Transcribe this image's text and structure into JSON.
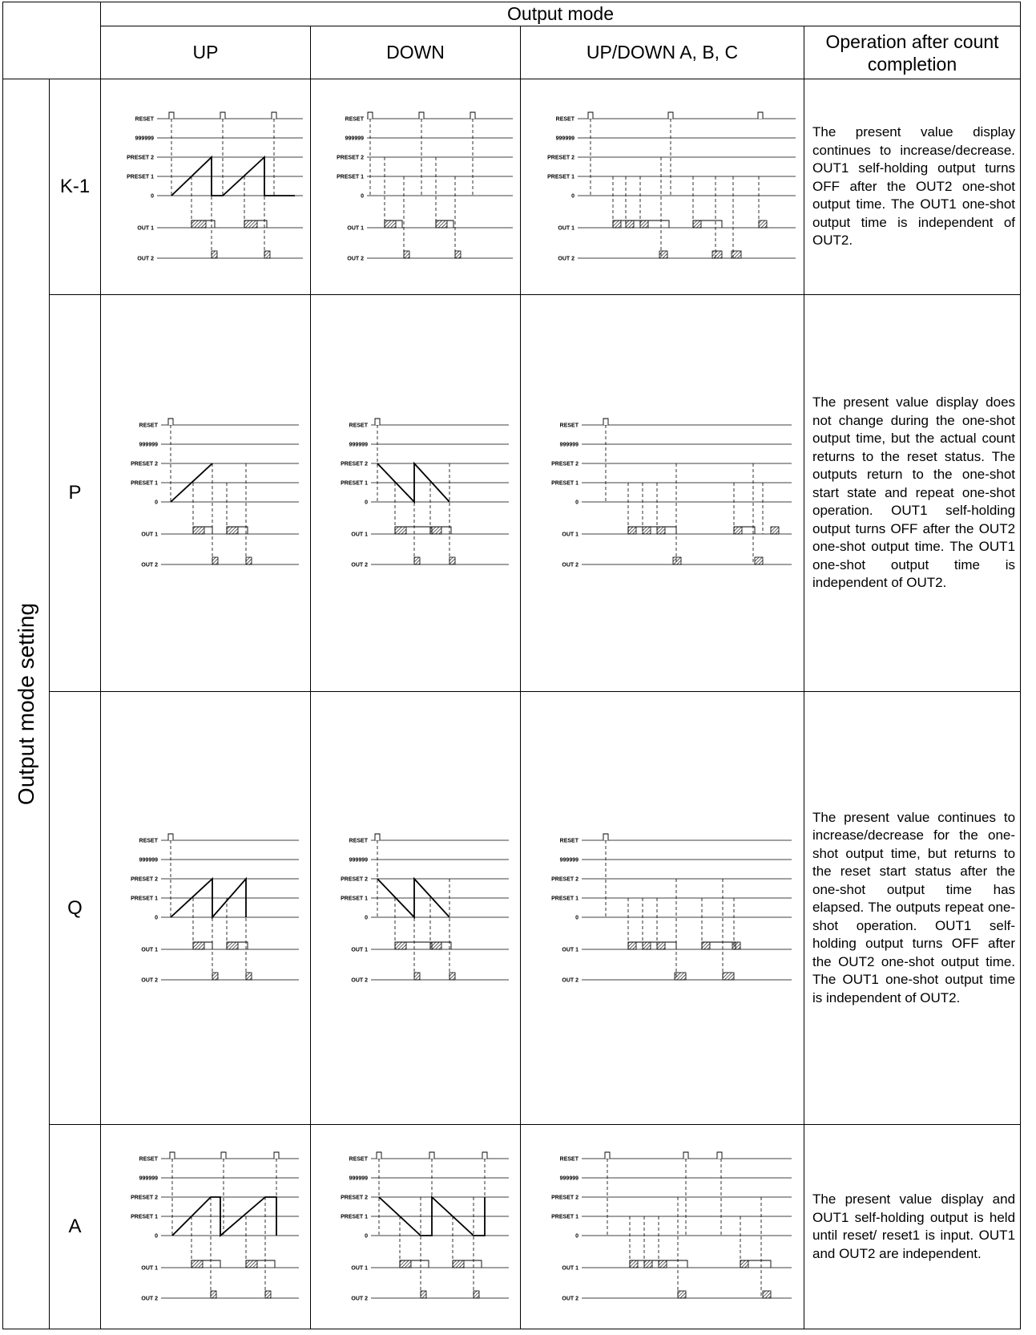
{
  "header": {
    "output_mode": "Output mode",
    "up": "UP",
    "down": "DOWN",
    "updown": "UP/DOWN A, B, C",
    "after": "Operation after count completion"
  },
  "side_label": "Output mode setting",
  "signal_labels": [
    "RESET",
    "999999",
    "PRESET 2",
    "PRESET 1",
    "0",
    "OUT 1",
    "OUT 2"
  ],
  "rows": [
    {
      "label": "K-1",
      "description": "The present value display continues to increase/decrease. OUT1 self-holding output turns OFF after the OUT2 one-shot output time. The OUT1 one-shot output time is independent of OUT2."
    },
    {
      "label": "P",
      "description": "The present value display does not change during the one-shot output time, but the actual count returns to the reset status. The outputs return to the one-shot start state and repeat one-shot operation. OUT1 self-holding output turns OFF after the OUT2 one-shot output time. The OUT1 one-shot output time is independent of OUT2."
    },
    {
      "label": "Q",
      "description": "The present value continues to increase/decrease for the one-shot output time, but returns to the reset start status after the one-shot output time has elapsed. The outputs repeat one-shot operation. OUT1 self-holding output turns OFF after the OUT2 one-shot output time. The OUT1 one-shot output time is independent of OUT2."
    },
    {
      "label": "A",
      "description": "The present value display and OUT1 self-holding output is held until reset/ reset1 is input. OUT1 and OUT2 are independent."
    }
  ]
}
